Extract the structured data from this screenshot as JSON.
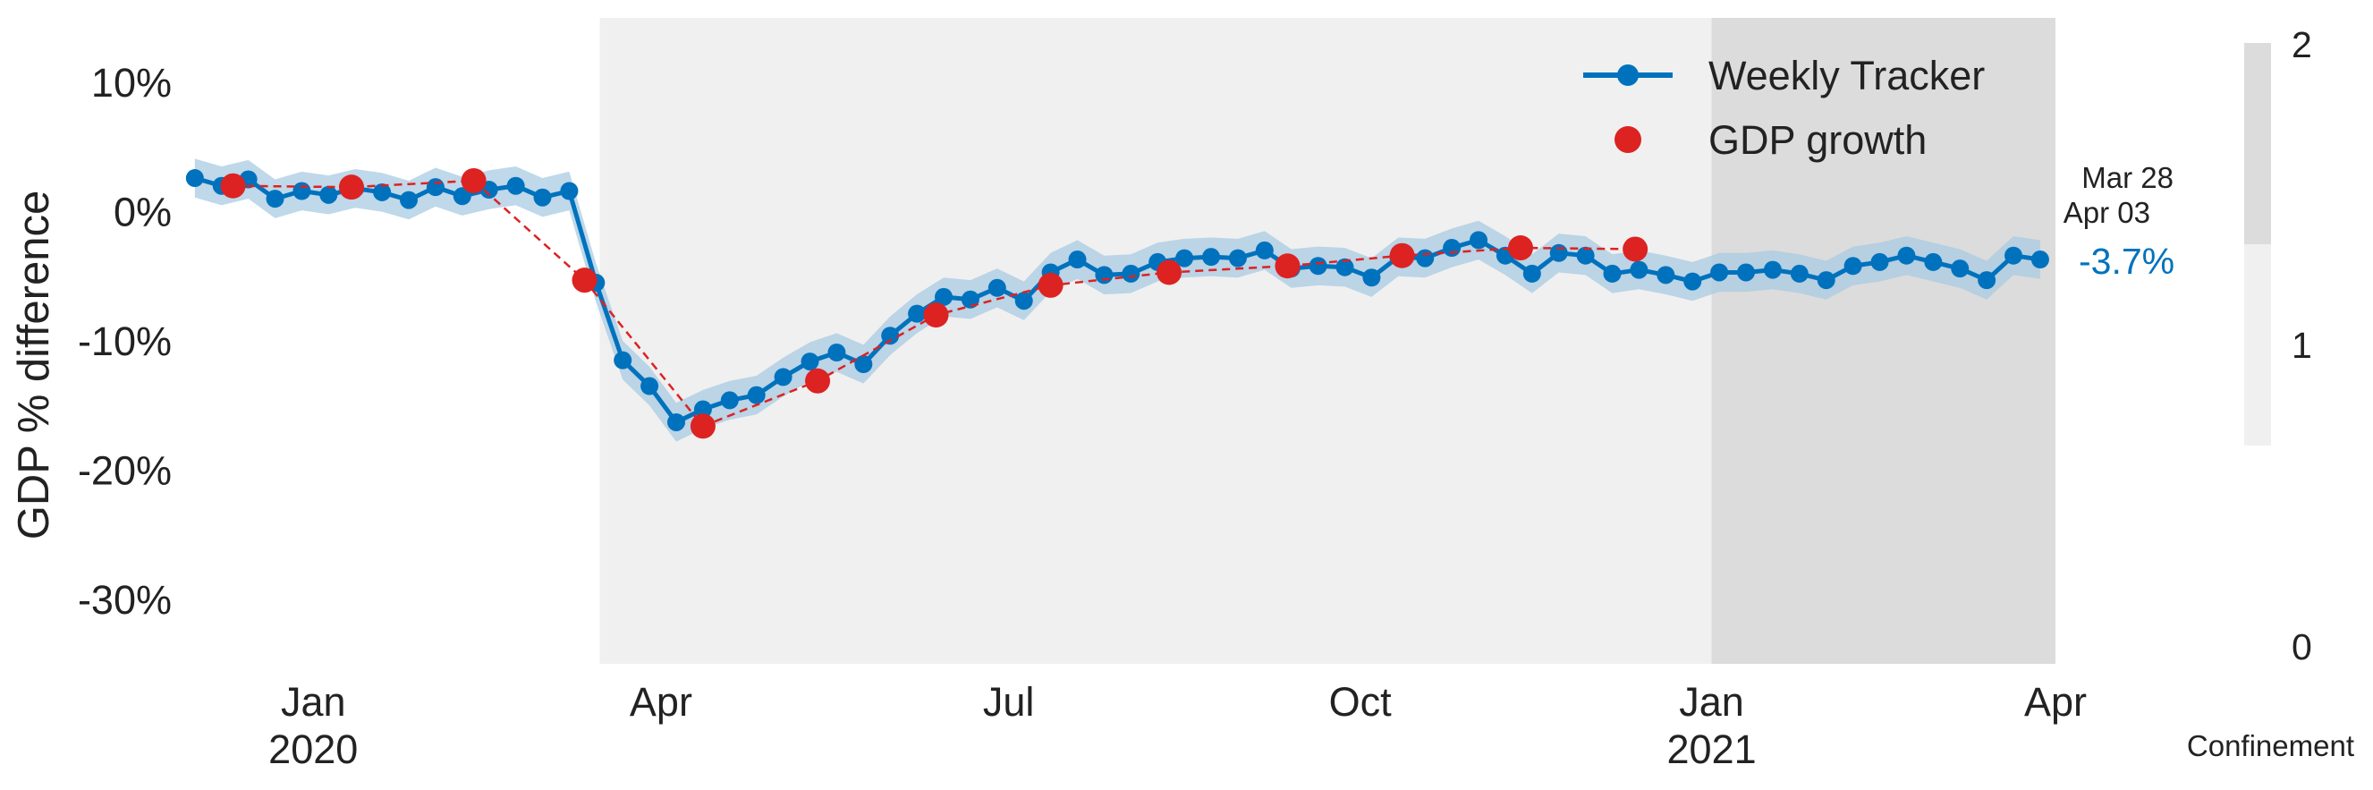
{
  "chart_data": {
    "type": "line",
    "xlabel": "",
    "ylabel": "GDP % difference",
    "ylim": [
      -35,
      15
    ],
    "yticks": [
      {
        "value": 10,
        "label": "10%"
      },
      {
        "value": 0,
        "label": "0%"
      },
      {
        "value": -10,
        "label": "-10%"
      },
      {
        "value": -20,
        "label": "-20%"
      },
      {
        "value": -30,
        "label": "-30%"
      }
    ],
    "xlim": [
      "2019-11-28",
      "2021-04-01"
    ],
    "xticks": [
      {
        "date": "2020-01-01",
        "label": "Jan",
        "year": "2020"
      },
      {
        "date": "2020-04-01",
        "label": "Apr",
        "year": ""
      },
      {
        "date": "2020-07-01",
        "label": "Jul",
        "year": ""
      },
      {
        "date": "2020-10-01",
        "label": "Oct",
        "year": ""
      },
      {
        "date": "2021-01-01",
        "label": "Jan",
        "year": "2021"
      },
      {
        "date": "2021-04-01",
        "label": "Apr",
        "year": ""
      }
    ],
    "grid": false,
    "legend_position": "top-right",
    "series": [
      {
        "name": "Weekly Tracker",
        "color": "#0072bd",
        "band_color": "#a9cbe3",
        "band_halfwidth": 1.5,
        "points": [
          [
            "2019-12-01",
            2.6
          ],
          [
            "2019-12-08",
            2.0
          ],
          [
            "2019-12-15",
            2.5
          ],
          [
            "2019-12-22",
            1.0
          ],
          [
            "2019-12-29",
            1.6
          ],
          [
            "2020-01-05",
            1.3
          ],
          [
            "2020-01-12",
            1.8
          ],
          [
            "2020-01-19",
            1.5
          ],
          [
            "2020-01-26",
            0.9
          ],
          [
            "2020-02-02",
            1.9
          ],
          [
            "2020-02-09",
            1.2
          ],
          [
            "2020-02-16",
            1.7
          ],
          [
            "2020-02-23",
            2.0
          ],
          [
            "2020-03-01",
            1.1
          ],
          [
            "2020-03-08",
            1.6
          ],
          [
            "2020-03-15",
            -5.5
          ],
          [
            "2020-03-22",
            -11.5
          ],
          [
            "2020-03-29",
            -13.5
          ],
          [
            "2020-04-05",
            -16.3
          ],
          [
            "2020-04-12",
            -15.3
          ],
          [
            "2020-04-19",
            -14.6
          ],
          [
            "2020-04-26",
            -14.2
          ],
          [
            "2020-05-03",
            -12.8
          ],
          [
            "2020-05-10",
            -11.6
          ],
          [
            "2020-05-17",
            -10.9
          ],
          [
            "2020-05-24",
            -11.8
          ],
          [
            "2020-05-31",
            -9.6
          ],
          [
            "2020-06-07",
            -7.9
          ],
          [
            "2020-06-14",
            -6.6
          ],
          [
            "2020-06-21",
            -6.8
          ],
          [
            "2020-06-28",
            -5.9
          ],
          [
            "2020-07-05",
            -6.9
          ],
          [
            "2020-07-12",
            -4.7
          ],
          [
            "2020-07-19",
            -3.7
          ],
          [
            "2020-07-26",
            -4.9
          ],
          [
            "2020-08-02",
            -4.8
          ],
          [
            "2020-08-09",
            -3.9
          ],
          [
            "2020-08-16",
            -3.6
          ],
          [
            "2020-08-23",
            -3.5
          ],
          [
            "2020-08-30",
            -3.6
          ],
          [
            "2020-09-06",
            -3.0
          ],
          [
            "2020-09-13",
            -4.4
          ],
          [
            "2020-09-20",
            -4.2
          ],
          [
            "2020-09-27",
            -4.3
          ],
          [
            "2020-10-04",
            -5.1
          ],
          [
            "2020-10-11",
            -3.5
          ],
          [
            "2020-10-18",
            -3.6
          ],
          [
            "2020-10-25",
            -2.8
          ],
          [
            "2020-11-01",
            -2.2
          ],
          [
            "2020-11-08",
            -3.4
          ],
          [
            "2020-11-15",
            -4.8
          ],
          [
            "2020-11-22",
            -3.2
          ],
          [
            "2020-11-29",
            -3.4
          ],
          [
            "2020-12-06",
            -4.8
          ],
          [
            "2020-12-13",
            -4.5
          ],
          [
            "2020-12-20",
            -4.9
          ],
          [
            "2020-12-27",
            -5.4
          ],
          [
            "2021-01-03",
            -4.7
          ],
          [
            "2021-01-10",
            -4.7
          ],
          [
            "2021-01-17",
            -4.5
          ],
          [
            "2021-01-24",
            -4.8
          ],
          [
            "2021-01-31",
            -5.3
          ],
          [
            "2021-02-07",
            -4.2
          ],
          [
            "2021-02-14",
            -3.9
          ],
          [
            "2021-02-21",
            -3.4
          ],
          [
            "2021-02-28",
            -3.9
          ],
          [
            "2021-03-07",
            -4.4
          ],
          [
            "2021-03-14",
            -5.3
          ],
          [
            "2021-03-21",
            -3.4
          ],
          [
            "2021-03-28",
            -3.7
          ]
        ]
      },
      {
        "name": "GDP growth",
        "color": "#dd2222",
        "points": [
          [
            "2019-12-11",
            2.0
          ],
          [
            "2020-01-11",
            1.9
          ],
          [
            "2020-02-12",
            2.4
          ],
          [
            "2020-03-12",
            -5.3
          ],
          [
            "2020-04-12",
            -16.6
          ],
          [
            "2020-05-12",
            -13.1
          ],
          [
            "2020-06-12",
            -8.0
          ],
          [
            "2020-07-12",
            -5.7
          ],
          [
            "2020-08-12",
            -4.7
          ],
          [
            "2020-09-12",
            -4.2
          ],
          [
            "2020-10-12",
            -3.4
          ],
          [
            "2020-11-12",
            -2.8
          ],
          [
            "2020-12-12",
            -2.9
          ]
        ]
      }
    ],
    "shaded_regions": [
      {
        "start": "2020-03-16",
        "end": "2021-04-01",
        "level": 1,
        "color": "#f0f0f0"
      },
      {
        "start": "2021-01-01",
        "end": "2021-04-01",
        "level": 2,
        "color": "#dcdcdc"
      }
    ],
    "annotations": {
      "date_top": "Mar 28",
      "date_bottom": "Apr 03",
      "last_value": "-3.7%"
    },
    "colorbar": {
      "label": "Confinement",
      "ticks": [
        "2",
        "1",
        "0"
      ],
      "colors": [
        "#dcdcdc",
        "#f0f0f0"
      ]
    }
  }
}
